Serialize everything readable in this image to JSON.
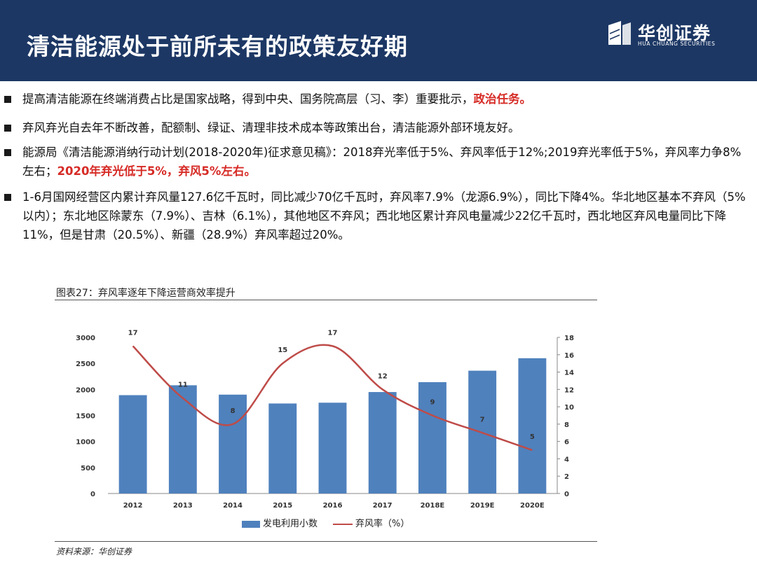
{
  "header": {
    "title": "清洁能源处于前所未有的政策友好期",
    "logo_cn": "华创证券",
    "logo_en": "HUA CHUANG SECURITIES"
  },
  "bullets": [
    {
      "parts": [
        {
          "text": "提高清洁能源在终端消费占比是国家战略，得到中央、国务院高层（习、李）重要批示，"
        },
        {
          "text": "政治任务。",
          "red": true
        }
      ]
    },
    {
      "parts": [
        {
          "text": "弃风弃光自去年不断改善，配额制、绿证、清理非技术成本等政策出台，清洁能源外部环境友好。"
        }
      ]
    },
    {
      "parts": [
        {
          "text": "能源局《清洁能源消纳行动计划(2018-2020年)征求意见稿》：2018弃光率低于5%、弃风率低于12%;2019弃光率低于5%，弃风率力争8%左右；"
        },
        {
          "text": "2020年弃光低于5%，弃风5%左右。",
          "red": true
        }
      ]
    },
    {
      "parts": [
        {
          "text": "1-6月国网经营区内累计弃风量127.6亿千瓦时，同比减少70亿千瓦时，弃风率7.9%（龙源6.9%），同比下降4%。华北地区基本不弃风（5%以内）；东北地区除蒙东（7.9%）、吉林（6.1%），其他地区不弃风；西北地区累计弃风电量减少22亿千瓦时，西北地区弃风电量同比下降11%，但是甘肃（20.5%）、新疆（28.9%）弃风率超过20%。"
        }
      ]
    }
  ],
  "figure": {
    "title": "图表27：弃风率逐年下降运营商效率提升",
    "source": "资料来源：华创证券"
  },
  "chart_data": {
    "type": "bar",
    "categories": [
      "2012",
      "2013",
      "2014",
      "2015",
      "2016",
      "2017",
      "2018E",
      "2019E",
      "2020E"
    ],
    "series": [
      {
        "name": "发电利用小数",
        "type": "bar",
        "axis": "left",
        "color": "#4f81bd",
        "values": [
          1890,
          2080,
          1900,
          1730,
          1745,
          1950,
          2140,
          2360,
          2600
        ]
      },
      {
        "name": "弃风率（%）",
        "type": "line",
        "axis": "right",
        "color": "#be4b48",
        "values": [
          17,
          11,
          8,
          15,
          17,
          12,
          9,
          7,
          5
        ],
        "labels": [
          "17",
          "11",
          "8",
          "15",
          "17",
          "12",
          "9",
          "7",
          "5"
        ]
      }
    ],
    "y_left": {
      "min": 0,
      "max": 3000,
      "ticks": [
        "0",
        "500",
        "1000",
        "1500",
        "2000",
        "2500",
        "3000"
      ]
    },
    "y_right": {
      "min": 0,
      "max": 18,
      "ticks": [
        "0",
        "2",
        "4",
        "6",
        "8",
        "10",
        "12",
        "14",
        "16",
        "18"
      ]
    },
    "legend_position": "bottom",
    "grid": false
  }
}
